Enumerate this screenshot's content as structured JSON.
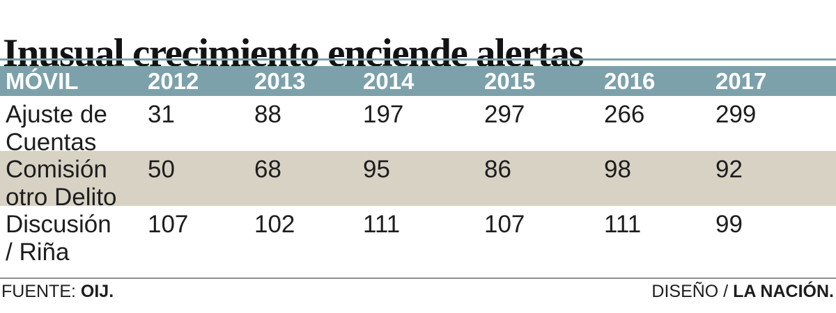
{
  "title": "Inusual crecimiento enciende alertas",
  "colors": {
    "teal": "#7CA1AB",
    "beige": "#D8D2C5",
    "rule": "#8F8F8F"
  },
  "header": {
    "columns": [
      "MÓVIL",
      "2012",
      "2013",
      "2014",
      "2015",
      "2016",
      "2017"
    ]
  },
  "rows": [
    {
      "label": "Ajuste de Cuentas",
      "label_line1": "Ajuste de",
      "label_line2": "Cuentas",
      "values": [
        "31",
        "88",
        "197",
        "297",
        "266",
        "299"
      ]
    },
    {
      "label": "Comisión otro Delito",
      "label_line1": "Comisión",
      "label_line2": "otro Delito",
      "values": [
        "50",
        "68",
        "95",
        "86",
        "98",
        "92"
      ]
    },
    {
      "label": "Discusión / Riña",
      "label_line1": "Discusión",
      "label_line2": "/ Riña",
      "values": [
        "107",
        "102",
        "111",
        "107",
        "111",
        "99"
      ]
    }
  ],
  "footer": {
    "source_label": "FUENTE:",
    "source_value": "OIJ.",
    "credit_label": "DISEÑO /",
    "credit_value": "LA NACIÓN."
  },
  "chart_data": {
    "type": "table",
    "title": "Inusual crecimiento enciende alertas",
    "row_header_label": "MÓVIL",
    "categories": [
      "2012",
      "2013",
      "2014",
      "2015",
      "2016",
      "2017"
    ],
    "series": [
      {
        "name": "Ajuste de Cuentas",
        "values": [
          31,
          88,
          197,
          297,
          266,
          299
        ]
      },
      {
        "name": "Comisión otro Delito",
        "values": [
          50,
          68,
          95,
          86,
          98,
          92
        ]
      },
      {
        "name": "Discusión / Riña",
        "values": [
          107,
          102,
          111,
          107,
          111,
          99
        ]
      }
    ],
    "source": "FUENTE: OIJ.",
    "credit": "DISEÑO / LA NACIÓN.",
    "layout": {
      "striped_row_index": 1,
      "header_background": "#7CA1AB",
      "stripe_background": "#D8D2C5"
    }
  }
}
